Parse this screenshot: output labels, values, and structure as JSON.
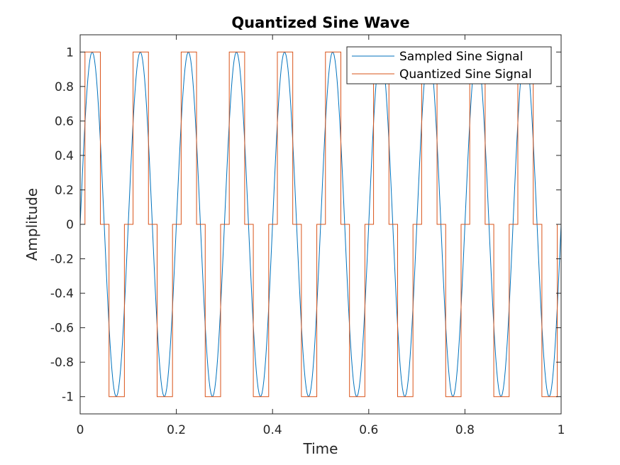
{
  "chart_data": {
    "type": "line",
    "title": "Quantized Sine Wave",
    "xlabel": "Time",
    "ylabel": "Amplitude",
    "xlim": [
      0,
      1
    ],
    "ylim": [
      -1.1,
      1.1
    ],
    "x_ticks": [
      0,
      0.2,
      0.4,
      0.6,
      0.8,
      1
    ],
    "x_tick_labels": [
      "0",
      "0.2",
      "0.4",
      "0.6",
      "0.8",
      "1"
    ],
    "y_ticks": [
      -1,
      -0.8,
      -0.6,
      -0.4,
      -0.2,
      0,
      0.2,
      0.4,
      0.6,
      0.8,
      1
    ],
    "y_tick_labels": [
      "-1",
      "-0.8",
      "-0.6",
      "-0.4",
      "-0.2",
      "0",
      "0.2",
      "0.4",
      "0.6",
      "0.8",
      "1"
    ],
    "grid": false,
    "legend_position": "top-right",
    "signal": {
      "frequency_hz": 10,
      "amplitude": 1,
      "sample_step": 0.002,
      "quantized_levels": [
        -1,
        0,
        1
      ]
    },
    "series": [
      {
        "name": "Sampled Sine Signal",
        "color": "#0072BD",
        "kind": "sampled"
      },
      {
        "name": "Quantized Sine Signal",
        "color": "#D95319",
        "kind": "quantized"
      }
    ]
  }
}
